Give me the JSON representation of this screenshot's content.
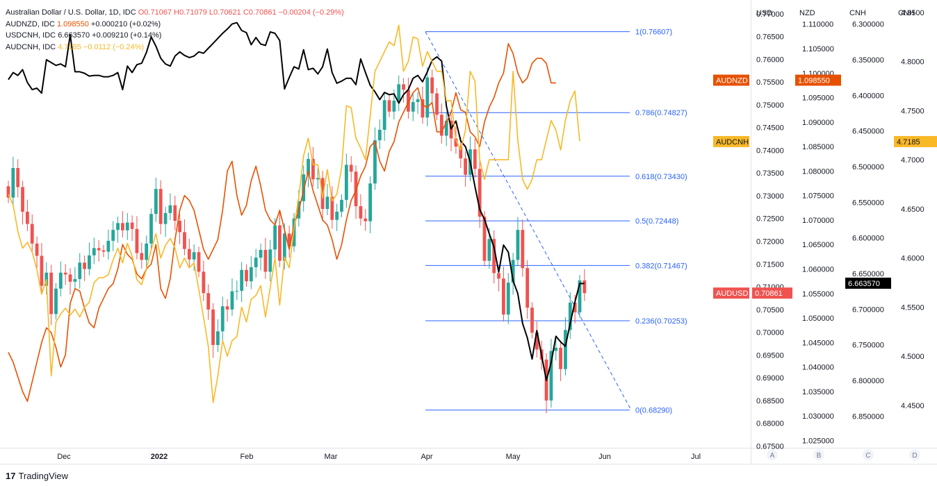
{
  "legend": {
    "main": {
      "name": "Australian Dollar / U.S. Dollar, 1D, IDC",
      "o": "O0.71067",
      "h": "H0.71079",
      "l": "L0.70621",
      "c": "C0.70861",
      "chg": "−0.00204 (−0.29%)"
    },
    "rows": [
      {
        "name": "AUDNZD, IDC",
        "value": "1.098550",
        "chg": "+0.000210 (+0.02%)",
        "color": "#e65100"
      },
      {
        "name": "USDCNH, IDC",
        "value": "6.663570",
        "chg": "+0.009210 (+0.14%)",
        "color": "#131722"
      },
      {
        "name": "AUDCNH, IDC",
        "value": "4.7185",
        "chg": "−0.0112 (−0.24%)",
        "color": "#f9b826"
      }
    ]
  },
  "branding": {
    "logo_text": "TradingView",
    "logo_mark": "17"
  },
  "colors": {
    "up": "#26a69a",
    "down": "#ef5350",
    "audnzd": "#e65100",
    "usdcnh": "#000000",
    "audcnh": "#f9b826",
    "fib": "#2962ff"
  },
  "chart_data": {
    "type": "line",
    "x_ticks": [
      "Dec",
      "2022",
      "Feb",
      "Mar",
      "Apr",
      "May",
      "Jun",
      "Jul"
    ],
    "axes": [
      {
        "id": "A",
        "label": "USD",
        "range": [
          0.6746,
          0.7715
        ],
        "ticks": [
          "0.77000",
          "0.76500",
          "0.76000",
          "0.75500",
          "0.75000",
          "0.74500",
          "0.74000",
          "0.73500",
          "0.73000",
          "0.72500",
          "0.72000",
          "0.71500",
          "0.71000",
          "0.70500",
          "0.70000",
          "0.69500",
          "0.69000",
          "0.68500",
          "0.68000",
          "0.67500"
        ],
        "tick_values": [
          0.77,
          0.765,
          0.76,
          0.755,
          0.75,
          0.745,
          0.74,
          0.735,
          0.73,
          0.725,
          0.72,
          0.715,
          0.71,
          0.705,
          0.7,
          0.695,
          0.69,
          0.685,
          0.68,
          0.675
        ]
      },
      {
        "id": "B",
        "label": "NZD",
        "range": [
          1.0235,
          1.1135
        ],
        "ticks": [
          "1.110000",
          "1.105000",
          "1.100000",
          "1.095000",
          "1.090000",
          "1.085000",
          "1.080000",
          "1.075000",
          "1.070000",
          "1.065000",
          "1.060000",
          "1.055000",
          "1.050000",
          "1.045000",
          "1.040000",
          "1.035000",
          "1.030000",
          "1.025000"
        ],
        "tick_values": [
          1.11,
          1.105,
          1.1,
          1.095,
          1.09,
          1.085,
          1.08,
          1.075,
          1.07,
          1.065,
          1.06,
          1.055,
          1.05,
          1.045,
          1.04,
          1.035,
          1.03,
          1.025
        ]
      },
      {
        "id": "C",
        "label": "CNH",
        "range": [
          6.276,
          6.8945
        ],
        "inverted": true,
        "ticks": [
          "6.300000",
          "6.350000",
          "6.400000",
          "6.450000",
          "6.500000",
          "6.550000",
          "6.600000",
          "6.650000",
          "6.700000",
          "6.750000",
          "6.800000",
          "6.850000"
        ],
        "tick_values": [
          6.3,
          6.35,
          6.4,
          6.45,
          6.5,
          6.55,
          6.6,
          6.65,
          6.7,
          6.75,
          6.8,
          6.85
        ]
      },
      {
        "id": "D",
        "label": "CNH",
        "range": [
          4.4069,
          4.8555
        ],
        "ticks": [
          "4.8500",
          "4.8000",
          "4.7500",
          "4.7000",
          "4.6500",
          "4.6000",
          "4.5500",
          "4.5000",
          "4.4500"
        ],
        "tick_values": [
          4.85,
          4.8,
          4.75,
          4.7,
          4.65,
          4.6,
          4.55,
          4.5,
          4.45
        ]
      }
    ],
    "fibonacci": [
      {
        "label": "1(0.76607)",
        "value": 0.76607
      },
      {
        "label": "0.786(0.74827)",
        "value": 0.74827
      },
      {
        "label": "0.618(0.73430)",
        "value": 0.7343
      },
      {
        "label": "0.5(0.72448)",
        "value": 0.72448
      },
      {
        "label": "0.382(0.71467)",
        "value": 0.71467
      },
      {
        "label": "0.236(0.70253)",
        "value": 0.70253
      },
      {
        "label": "0(0.68290)",
        "value": 0.6829
      }
    ],
    "badges": [
      {
        "label": "AUDNZD",
        "value": "1.098550",
        "axis": "B",
        "color": "#e65100"
      },
      {
        "label": "AUDCNH",
        "value": "4.7185",
        "axis": "D",
        "color": "#f9b826"
      },
      {
        "label": "AUDUSD",
        "value": "0.70861",
        "axis": "A",
        "color": "#ef5350"
      },
      {
        "label": "",
        "value": "6.663570",
        "axis": "C",
        "color": "#000000"
      }
    ],
    "series": [
      {
        "name": "AUDUSD",
        "type": "candlestick",
        "axis": "A",
        "values": [
          0.7296,
          0.7361,
          0.7319,
          0.7265,
          0.7238,
          0.7195,
          0.7168,
          0.7102,
          0.7131,
          0.704,
          0.7096,
          0.7131,
          0.7127,
          0.7111,
          0.7117,
          0.7153,
          0.7139,
          0.7169,
          0.7185,
          0.718,
          0.7177,
          0.7201,
          0.7225,
          0.724,
          0.7224,
          0.7241,
          0.7227,
          0.7174,
          0.7159,
          0.7195,
          0.726,
          0.7315,
          0.7238,
          0.7262,
          0.7279,
          0.7245,
          0.722,
          0.7183,
          0.716,
          0.7176,
          0.7133,
          0.7086,
          0.705,
          0.6972,
          0.7002,
          0.7057,
          0.705,
          0.709,
          0.7091,
          0.7137,
          0.7112,
          0.7143,
          0.7164,
          0.7181,
          0.7133,
          0.7182,
          0.7235,
          0.7157,
          0.7217,
          0.7189,
          0.725,
          0.7288,
          0.7347,
          0.7381,
          0.7336,
          0.7339,
          0.7271,
          0.7298,
          0.7247,
          0.7265,
          0.7291,
          0.7368,
          0.7353,
          0.7277,
          0.725,
          0.7244,
          0.7327,
          0.7422,
          0.7445,
          0.751,
          0.7485,
          0.7509,
          0.7545,
          0.7533,
          0.7485,
          0.7506,
          0.7512,
          0.7472,
          0.756,
          0.7525,
          0.7478,
          0.7432,
          0.7465,
          0.7426,
          0.7408,
          0.7382,
          0.7346,
          0.7402,
          0.7359,
          0.7254,
          0.7157,
          0.7205,
          0.713,
          0.7118,
          0.7039,
          0.7109,
          0.7159,
          0.7225,
          0.7141,
          0.7054,
          0.6999,
          0.6962,
          0.694,
          0.685,
          0.6959,
          0.6966,
          0.6919,
          0.7005,
          0.7065,
          0.7044,
          0.7114,
          0.7086
        ]
      },
      {
        "name": "USDCNH",
        "type": "line",
        "axis": "C",
        "values": [
          6.378,
          6.368,
          6.372,
          6.364,
          6.382,
          6.392,
          6.39,
          6.397,
          6.35,
          6.354,
          6.358,
          6.356,
          6.36,
          6.315,
          6.367,
          6.367,
          6.369,
          6.373,
          6.372,
          6.372,
          6.374,
          6.374,
          6.372,
          6.368,
          6.392,
          6.359,
          6.368,
          6.357,
          6.355,
          6.34,
          6.318,
          6.331,
          6.348,
          6.356,
          6.359,
          6.345,
          6.339,
          6.344,
          6.347,
          6.345,
          6.339,
          6.341,
          6.334,
          6.327,
          6.32,
          6.313,
          6.307,
          6.3,
          6.298,
          6.309,
          6.312,
          6.329,
          6.319,
          6.328,
          6.33,
          6.311,
          6.313,
          6.323,
          6.391,
          6.375,
          6.36,
          6.363,
          6.336,
          6.364,
          6.362,
          6.37,
          6.36,
          6.335,
          6.368,
          6.383,
          6.38,
          6.376,
          6.376,
          6.385,
          6.349,
          6.368,
          6.386,
          6.395,
          6.406,
          6.396,
          6.399,
          6.398,
          6.411,
          6.399,
          6.392,
          6.376,
          6.372,
          6.381,
          6.367,
          6.351,
          6.346,
          6.352,
          6.415,
          6.447,
          6.436,
          6.464,
          6.472,
          6.493,
          6.528,
          6.56,
          6.574,
          6.594,
          6.613,
          6.648,
          6.61,
          6.62,
          6.66,
          6.678,
          6.72,
          6.74,
          6.77,
          6.73,
          6.765,
          6.8,
          6.775,
          6.738,
          6.746,
          6.752,
          6.72,
          6.69,
          6.664,
          6.664
        ]
      },
      {
        "name": "AUDNZD",
        "type": "line",
        "axis": "B",
        "values": [
          1.043,
          1.041,
          1.038,
          1.035,
          1.033,
          1.037,
          1.041,
          1.045,
          1.048,
          1.047,
          1.044,
          1.04,
          1.0425,
          1.053,
          1.056,
          1.0555,
          1.052,
          1.049,
          1.048,
          1.052,
          1.054,
          1.056,
          1.057,
          1.06,
          1.065,
          1.063,
          1.062,
          1.059,
          1.058,
          1.06,
          1.061,
          1.065,
          1.056,
          1.054,
          1.058,
          1.066,
          1.072,
          1.075,
          1.074,
          1.072,
          1.068,
          1.064,
          1.062,
          1.064,
          1.066,
          1.072,
          1.08,
          1.082,
          1.075,
          1.071,
          1.073,
          1.078,
          1.081,
          1.077,
          1.072,
          1.07,
          1.069,
          1.072,
          1.068,
          1.064,
          1.069,
          1.072,
          1.076,
          1.08,
          1.076,
          1.073,
          1.07,
          1.069,
          1.066,
          1.062,
          1.065,
          1.07,
          1.074,
          1.076,
          1.079,
          1.081,
          1.085,
          1.086,
          1.082,
          1.08,
          1.084,
          1.086,
          1.09,
          1.092,
          1.094,
          1.096,
          1.097,
          1.0935,
          1.093,
          1.094,
          1.088,
          1.088,
          1.09,
          1.092,
          1.096,
          1.0925,
          1.092,
          1.088,
          1.087,
          1.085,
          1.09,
          1.093,
          1.095,
          1.098,
          1.1,
          1.106,
          1.104,
          1.1,
          1.098,
          1.099,
          1.102,
          1.103,
          1.103,
          1.102,
          1.098,
          1.098
        ]
      },
      {
        "name": "AUDCNH",
        "type": "line",
        "axis": "D",
        "values": [
          4.665,
          4.654,
          4.627,
          4.61,
          4.616,
          4.606,
          4.588,
          4.563,
          4.578,
          4.48,
          4.535,
          4.543,
          4.549,
          4.542,
          4.548,
          4.54,
          4.55,
          4.555,
          4.575,
          4.58,
          4.58,
          4.583,
          4.598,
          4.61,
          4.595,
          4.615,
          4.602,
          4.578,
          4.573,
          4.589,
          4.608,
          4.625,
          4.6,
          4.613,
          4.62,
          4.61,
          4.59,
          4.6,
          4.59,
          4.595,
          4.568,
          4.54,
          4.51,
          4.453,
          4.48,
          4.516,
          4.5,
          4.516,
          4.52,
          4.55,
          4.535,
          4.558,
          4.562,
          4.572,
          4.54,
          4.57,
          4.6,
          4.552,
          4.601,
          4.59,
          4.631,
          4.662,
          4.704,
          4.722,
          4.695,
          4.695,
          4.661,
          4.69,
          4.658,
          4.665,
          4.692,
          4.755,
          4.753,
          4.722,
          4.712,
          4.7,
          4.745,
          4.79,
          4.8,
          4.81,
          4.82,
          4.816,
          4.837,
          4.79,
          4.8,
          4.825,
          4.823,
          4.795,
          4.81,
          4.8,
          4.79,
          4.79,
          4.76,
          4.76,
          4.72,
          4.71,
          4.73,
          4.79,
          4.78,
          4.7,
          4.68,
          4.7,
          4.7,
          4.7,
          4.7,
          4.7,
          4.79,
          4.72,
          4.68,
          4.67,
          4.68,
          4.7,
          4.7,
          4.72,
          4.74,
          4.73,
          4.71,
          4.74,
          4.76,
          4.77,
          4.719
        ]
      }
    ]
  }
}
